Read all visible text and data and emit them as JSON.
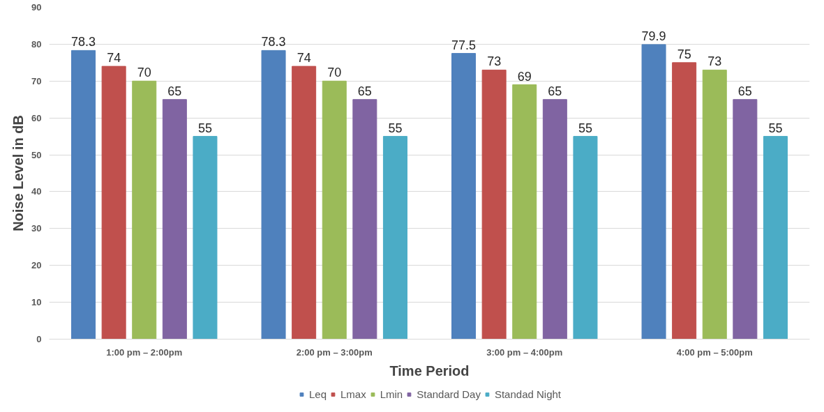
{
  "chart_data": {
    "type": "bar",
    "xlabel": "Time Period",
    "ylabel": "Noise Level in dB",
    "categories": [
      "1:00 pm – 2:00pm",
      "2:00 pm – 3:00pm",
      "3:00 pm – 4:00pm",
      "4:00 pm – 5:00pm"
    ],
    "series": [
      {
        "name": "Leq",
        "color": "#4f81bd",
        "values": [
          78.3,
          78.3,
          77.5,
          79.9
        ]
      },
      {
        "name": "Lmax",
        "color": "#c0504d",
        "values": [
          74,
          74,
          73,
          75
        ]
      },
      {
        "name": "Lmin",
        "color": "#9bbb59",
        "values": [
          70,
          70,
          69,
          73
        ]
      },
      {
        "name": "Standard Day",
        "color": "#8064a2",
        "values": [
          65,
          65,
          65,
          65
        ]
      },
      {
        "name": "Standad Night",
        "color": "#4bacc6",
        "values": [
          55,
          55,
          55,
          55
        ]
      }
    ],
    "ylim": [
      0,
      90
    ],
    "yticks": [
      0,
      10,
      20,
      30,
      40,
      50,
      60,
      70,
      80,
      90
    ],
    "grid": "y",
    "legend": "bottom",
    "data_labels": true
  }
}
